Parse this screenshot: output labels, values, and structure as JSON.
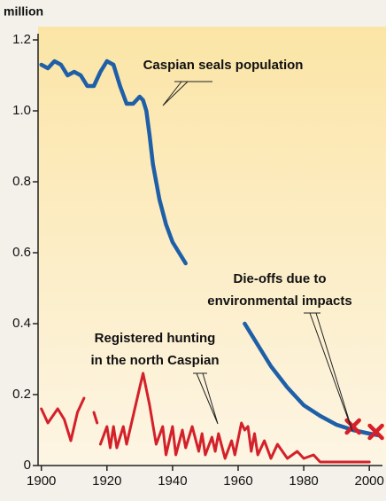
{
  "chart_data": {
    "type": "line",
    "ylabel": "million",
    "xlim": [
      1899,
      2004
    ],
    "ylim": [
      0,
      1.2
    ],
    "xticks": [
      1900,
      1920,
      1940,
      1960,
      1980,
      2000
    ],
    "yticks": [
      0,
      0.2,
      0.4,
      0.6,
      0.8,
      {
        "value": 1,
        "label": "1.0"
      },
      1.2
    ],
    "series": [
      {
        "color": "#1f5fa8",
        "x": [
          1900,
          1902,
          1904,
          1906,
          1908,
          1910,
          1912,
          1914,
          1916,
          1918,
          1920,
          1922,
          1924,
          1926,
          1928,
          1930,
          1931,
          1932,
          1933,
          1934,
          1936,
          1938,
          1940,
          1942,
          1944,
          null,
          1962,
          1966,
          1970,
          1975,
          1980,
          1985,
          1990,
          1995,
          2000,
          2003
        ],
        "values": [
          1.13,
          1.12,
          1.14,
          1.13,
          1.1,
          1.11,
          1.1,
          1.07,
          1.07,
          1.11,
          1.14,
          1.13,
          1.07,
          1.02,
          1.02,
          1.04,
          1.03,
          1.0,
          0.93,
          0.85,
          0.75,
          0.68,
          0.63,
          0.6,
          0.57,
          null,
          0.4,
          0.34,
          0.28,
          0.22,
          0.17,
          0.14,
          0.115,
          0.1,
          0.09,
          0.085
        ]
      },
      {
        "color": "#d4202a",
        "x": [
          1900,
          1902,
          1905,
          1907,
          1909,
          1911,
          1913,
          null,
          1916,
          1917,
          null,
          1918,
          1920,
          1921,
          1922,
          1923,
          1925,
          1926,
          1928,
          1930,
          1931,
          1933,
          1935,
          1937,
          1938,
          1940,
          1941,
          1943,
          1944,
          1946,
          1948,
          1949,
          1950,
          1952,
          1953,
          1954,
          1956,
          1958,
          1959,
          1961,
          1962,
          1963,
          1964,
          1965,
          1966,
          1968,
          1970,
          1972,
          1975,
          1978,
          1980,
          1983,
          1985,
          2000
        ],
        "values": [
          0.16,
          0.12,
          0.16,
          0.13,
          0.07,
          0.15,
          0.19,
          null,
          0.15,
          0.12,
          null,
          0.06,
          0.11,
          0.05,
          0.11,
          0.05,
          0.11,
          0.06,
          0.14,
          0.22,
          0.26,
          0.17,
          0.06,
          0.11,
          0.03,
          0.11,
          0.03,
          0.1,
          0.05,
          0.11,
          0.04,
          0.09,
          0.03,
          0.08,
          0.04,
          0.09,
          0.02,
          0.07,
          0.03,
          0.12,
          0.1,
          0.11,
          0.04,
          0.09,
          0.03,
          0.07,
          0.02,
          0.06,
          0.02,
          0.04,
          0.02,
          0.03,
          0.01,
          0.01
        ]
      }
    ],
    "markers": {
      "shape": "x",
      "color": "#d4202a",
      "x": [
        1995,
        2002
      ],
      "values": [
        0.11,
        0.095
      ]
    },
    "annotations": [
      {
        "lines": [
          "Caspian seals population"
        ]
      },
      {
        "lines": [
          "Die-offs due to",
          "environmental impacts"
        ]
      },
      {
        "lines": [
          "Registered hunting",
          "in the north Caspian"
        ]
      }
    ]
  }
}
